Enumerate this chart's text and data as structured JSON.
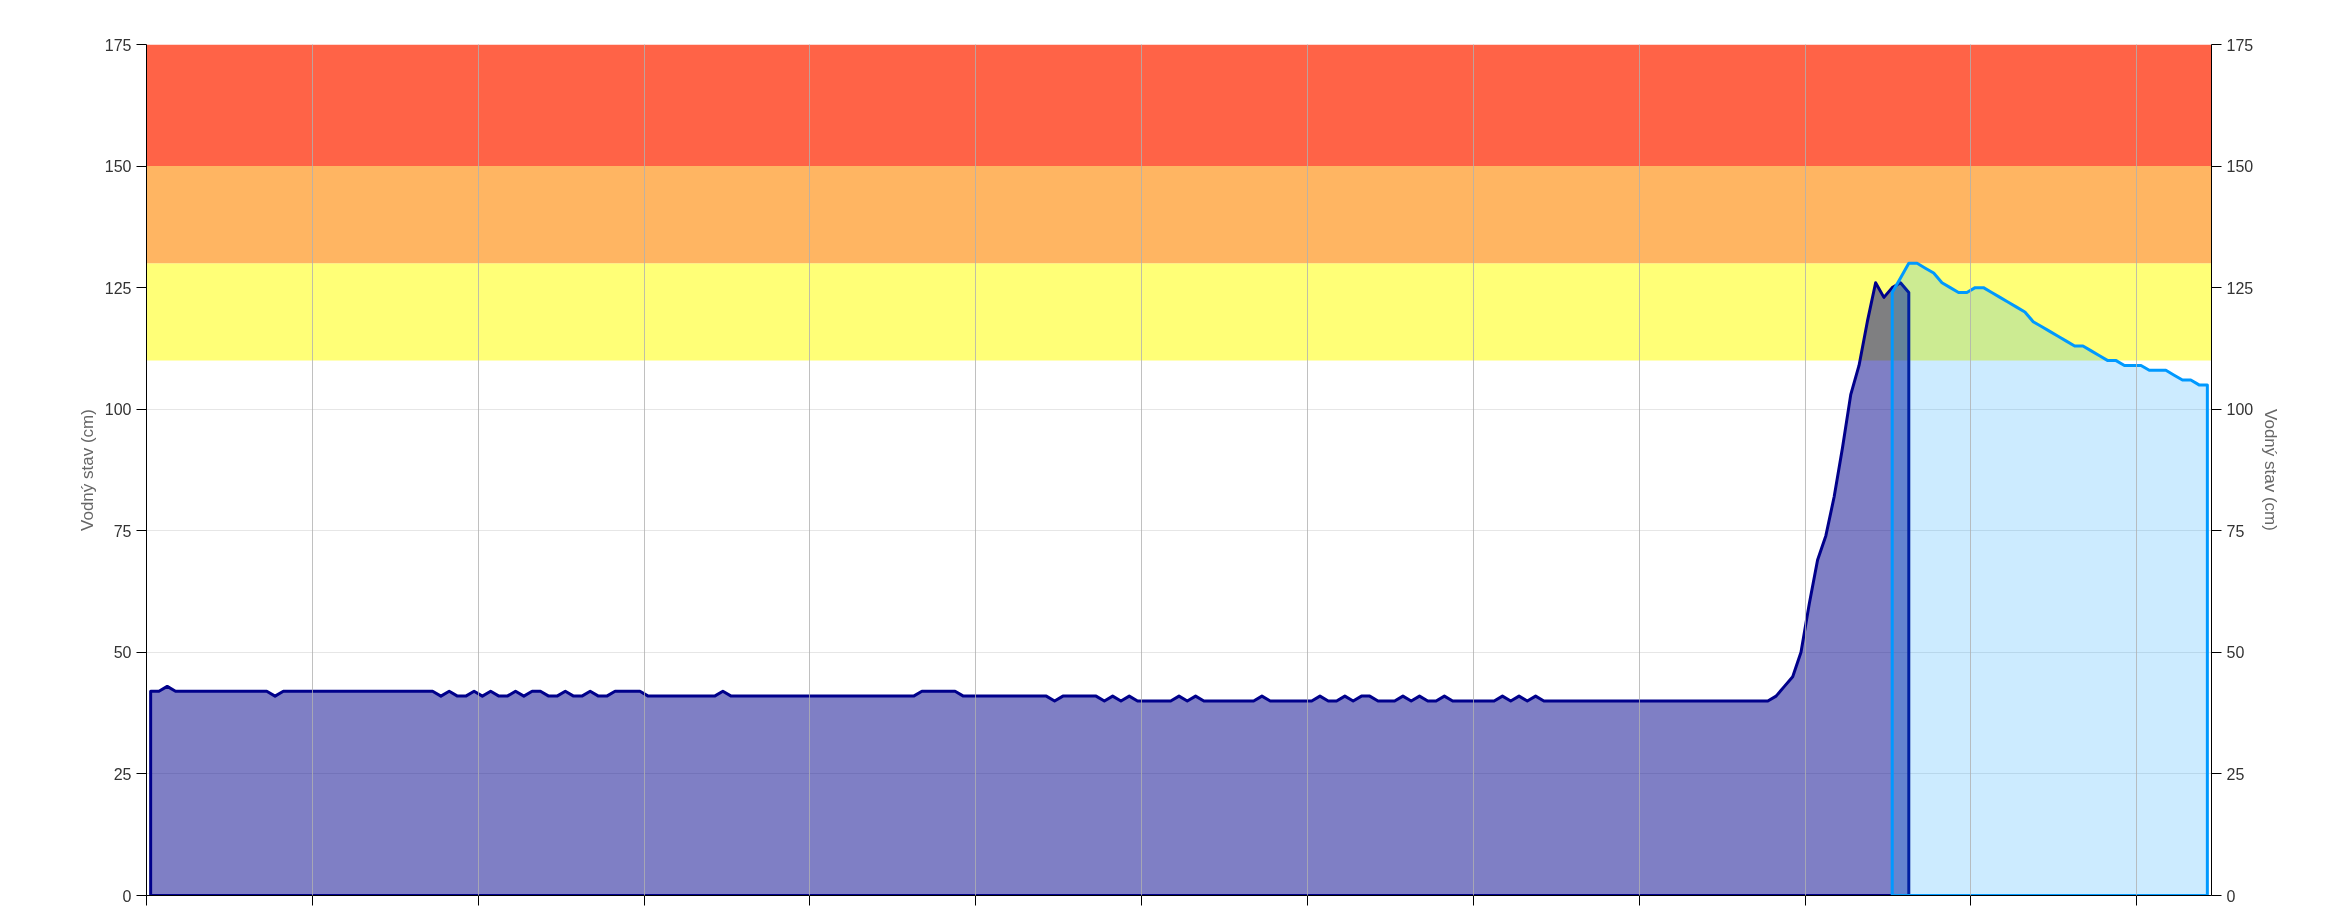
{
  "chart_data": {
    "type": "area",
    "ylabel": "Vodný stav (cm)",
    "y2label": "Vodný stav (cm)",
    "categories": [
      null,
      null,
      null,
      null,
      null,
      null,
      null,
      null,
      null,
      null,
      null,
      null,
      null,
      null,
      null,
      null,
      null,
      null,
      null,
      null,
      null,
      null,
      null,
      null,
      null,
      null,
      null,
      null,
      null,
      null,
      null,
      null,
      null,
      null,
      null,
      null,
      null,
      null,
      null,
      null,
      null,
      null,
      null,
      null,
      null,
      null,
      null,
      null,
      null,
      null,
      null,
      null,
      null,
      null,
      null,
      null,
      null,
      null,
      null,
      null,
      null,
      null,
      null,
      null,
      null,
      null,
      null,
      null,
      null,
      null,
      null,
      null,
      null,
      null,
      null,
      null,
      null,
      null,
      null,
      null,
      null,
      null,
      null,
      null,
      null,
      null,
      null,
      null,
      null,
      null,
      null,
      null,
      null,
      null,
      null,
      null,
      null,
      null,
      null,
      null,
      null,
      null,
      null,
      null,
      null,
      null,
      null,
      null,
      null,
      null,
      null,
      null,
      null,
      null,
      null,
      null,
      null,
      null,
      null,
      null,
      null,
      null,
      null,
      null,
      null,
      null,
      null,
      null,
      null,
      null,
      null,
      null,
      null,
      null,
      null,
      null,
      null,
      null,
      null,
      null,
      null,
      null,
      null,
      null,
      null,
      null,
      null,
      null,
      null,
      null,
      null,
      null,
      null,
      null,
      null,
      null,
      null,
      null,
      null,
      null,
      null,
      null,
      null,
      null,
      null,
      null,
      null,
      null,
      null,
      null,
      null,
      null,
      null,
      null,
      null,
      null,
      null,
      null,
      null,
      null,
      null,
      null,
      null,
      null,
      null,
      null,
      null,
      null,
      null,
      null,
      null,
      null,
      null,
      null,
      null,
      null,
      null,
      null,
      null,
      null,
      null,
      null,
      null,
      null,
      null,
      null,
      null,
      null,
      null,
      null,
      null,
      null,
      null,
      null,
      null,
      null,
      null,
      null,
      null,
      null,
      null,
      null,
      null,
      null,
      null,
      null,
      null,
      null,
      null,
      null,
      null,
      null,
      null,
      null,
      null,
      null,
      null,
      null,
      null,
      null,
      null,
      null,
      null,
      null,
      null,
      null,
      null,
      null,
      null
    ],
    "series": [
      {
        "color": "#00008b",
        "values": [
          42,
          42,
          43,
          42,
          42,
          42,
          42,
          42,
          42,
          42,
          42,
          42,
          42,
          42,
          42,
          41,
          42,
          42,
          42,
          42,
          42,
          42,
          42,
          42,
          42,
          42,
          42,
          42,
          42,
          42,
          42,
          42,
          42,
          42,
          42,
          41,
          42,
          41,
          41,
          42,
          41,
          42,
          41,
          41,
          42,
          41,
          42,
          42,
          41,
          41,
          42,
          41,
          41,
          42,
          41,
          41,
          42,
          42,
          42,
          42,
          41,
          41,
          41,
          41,
          41,
          41,
          41,
          41,
          41,
          42,
          41,
          41,
          41,
          41,
          41,
          41,
          41,
          41,
          41,
          41,
          41,
          41,
          41,
          41,
          41,
          41,
          41,
          41,
          41,
          41,
          41,
          41,
          41,
          42,
          42,
          42,
          42,
          42,
          41,
          41,
          41,
          41,
          41,
          41,
          41,
          41,
          41,
          41,
          41,
          40,
          41,
          41,
          41,
          41,
          41,
          40,
          41,
          40,
          41,
          40,
          40,
          40,
          40,
          40,
          41,
          40,
          41,
          40,
          40,
          40,
          40,
          40,
          40,
          40,
          41,
          40,
          40,
          40,
          40,
          40,
          40,
          41,
          40,
          40,
          41,
          40,
          41,
          41,
          40,
          40,
          40,
          41,
          40,
          41,
          40,
          40,
          41,
          40,
          40,
          40,
          40,
          40,
          40,
          41,
          40,
          41,
          40,
          41,
          40,
          40,
          40,
          40,
          40,
          40,
          40,
          40,
          40,
          40,
          40,
          40,
          40,
          40,
          40,
          40,
          40,
          40,
          40,
          40,
          40,
          40,
          40,
          40,
          40,
          40,
          40,
          40,
          41,
          43,
          45,
          50,
          60,
          69,
          74,
          82,
          92,
          103,
          109,
          118,
          126,
          123,
          125,
          126,
          124,
          null,
          null,
          null,
          null,
          null,
          null,
          null,
          null,
          null,
          null,
          null,
          null,
          null,
          null,
          null,
          null,
          null,
          null,
          null,
          null,
          null,
          null,
          null,
          null,
          null,
          null,
          null,
          null,
          null,
          null,
          null,
          null,
          null,
          null,
          null,
          null
        ]
      },
      {
        "color": "#0099ff",
        "values": [
          null,
          null,
          null,
          null,
          null,
          null,
          null,
          null,
          null,
          null,
          null,
          null,
          null,
          null,
          null,
          null,
          null,
          null,
          null,
          null,
          null,
          null,
          null,
          null,
          null,
          null,
          null,
          null,
          null,
          null,
          null,
          null,
          null,
          null,
          null,
          null,
          null,
          null,
          null,
          null,
          null,
          null,
          null,
          null,
          null,
          null,
          null,
          null,
          null,
          null,
          null,
          null,
          null,
          null,
          null,
          null,
          null,
          null,
          null,
          null,
          null,
          null,
          null,
          null,
          null,
          null,
          null,
          null,
          null,
          null,
          null,
          null,
          null,
          null,
          null,
          null,
          null,
          null,
          null,
          null,
          null,
          null,
          null,
          null,
          null,
          null,
          null,
          null,
          null,
          null,
          null,
          null,
          null,
          null,
          null,
          null,
          null,
          null,
          null,
          null,
          null,
          null,
          null,
          null,
          null,
          null,
          null,
          null,
          null,
          null,
          null,
          null,
          null,
          null,
          null,
          null,
          null,
          null,
          null,
          null,
          null,
          null,
          null,
          null,
          null,
          null,
          null,
          null,
          null,
          null,
          null,
          null,
          null,
          null,
          null,
          null,
          null,
          null,
          null,
          null,
          null,
          null,
          null,
          null,
          null,
          null,
          null,
          null,
          null,
          null,
          null,
          null,
          null,
          null,
          null,
          null,
          null,
          null,
          null,
          null,
          null,
          null,
          null,
          null,
          null,
          null,
          null,
          null,
          null,
          null,
          null,
          null,
          null,
          null,
          null,
          null,
          null,
          null,
          null,
          null,
          null,
          null,
          null,
          null,
          null,
          null,
          null,
          null,
          null,
          null,
          null,
          null,
          null,
          null,
          null,
          null,
          null,
          null,
          null,
          null,
          null,
          null,
          null,
          null,
          null,
          null,
          null,
          null,
          null,
          null,
          124,
          127,
          130,
          130,
          129,
          128,
          126,
          125,
          124,
          124,
          125,
          125,
          124,
          123,
          122,
          121,
          120,
          118,
          117,
          116,
          115,
          114,
          113,
          113,
          112,
          111,
          110,
          110,
          109,
          109,
          109,
          108,
          108,
          108,
          107,
          106,
          106,
          105,
          105
        ]
      }
    ],
    "ylim": [
      0,
      175
    ],
    "yticks": [
      0,
      25,
      50,
      75,
      100,
      125,
      150,
      175
    ],
    "y2lim": [
      0,
      175
    ],
    "y2ticks": [
      0,
      25,
      50,
      75,
      100,
      125,
      150,
      175
    ],
    "bands": [
      {
        "axis": "y",
        "from": 110,
        "to": 130,
        "color": "#ffff77"
      },
      {
        "axis": "y",
        "from": 130,
        "to": 150,
        "color": "#ffb562"
      },
      {
        "axis": "y",
        "from": 150,
        "to": 175,
        "color": "#ff6347"
      }
    ],
    "grid": true,
    "tick_labels": "y"
  }
}
